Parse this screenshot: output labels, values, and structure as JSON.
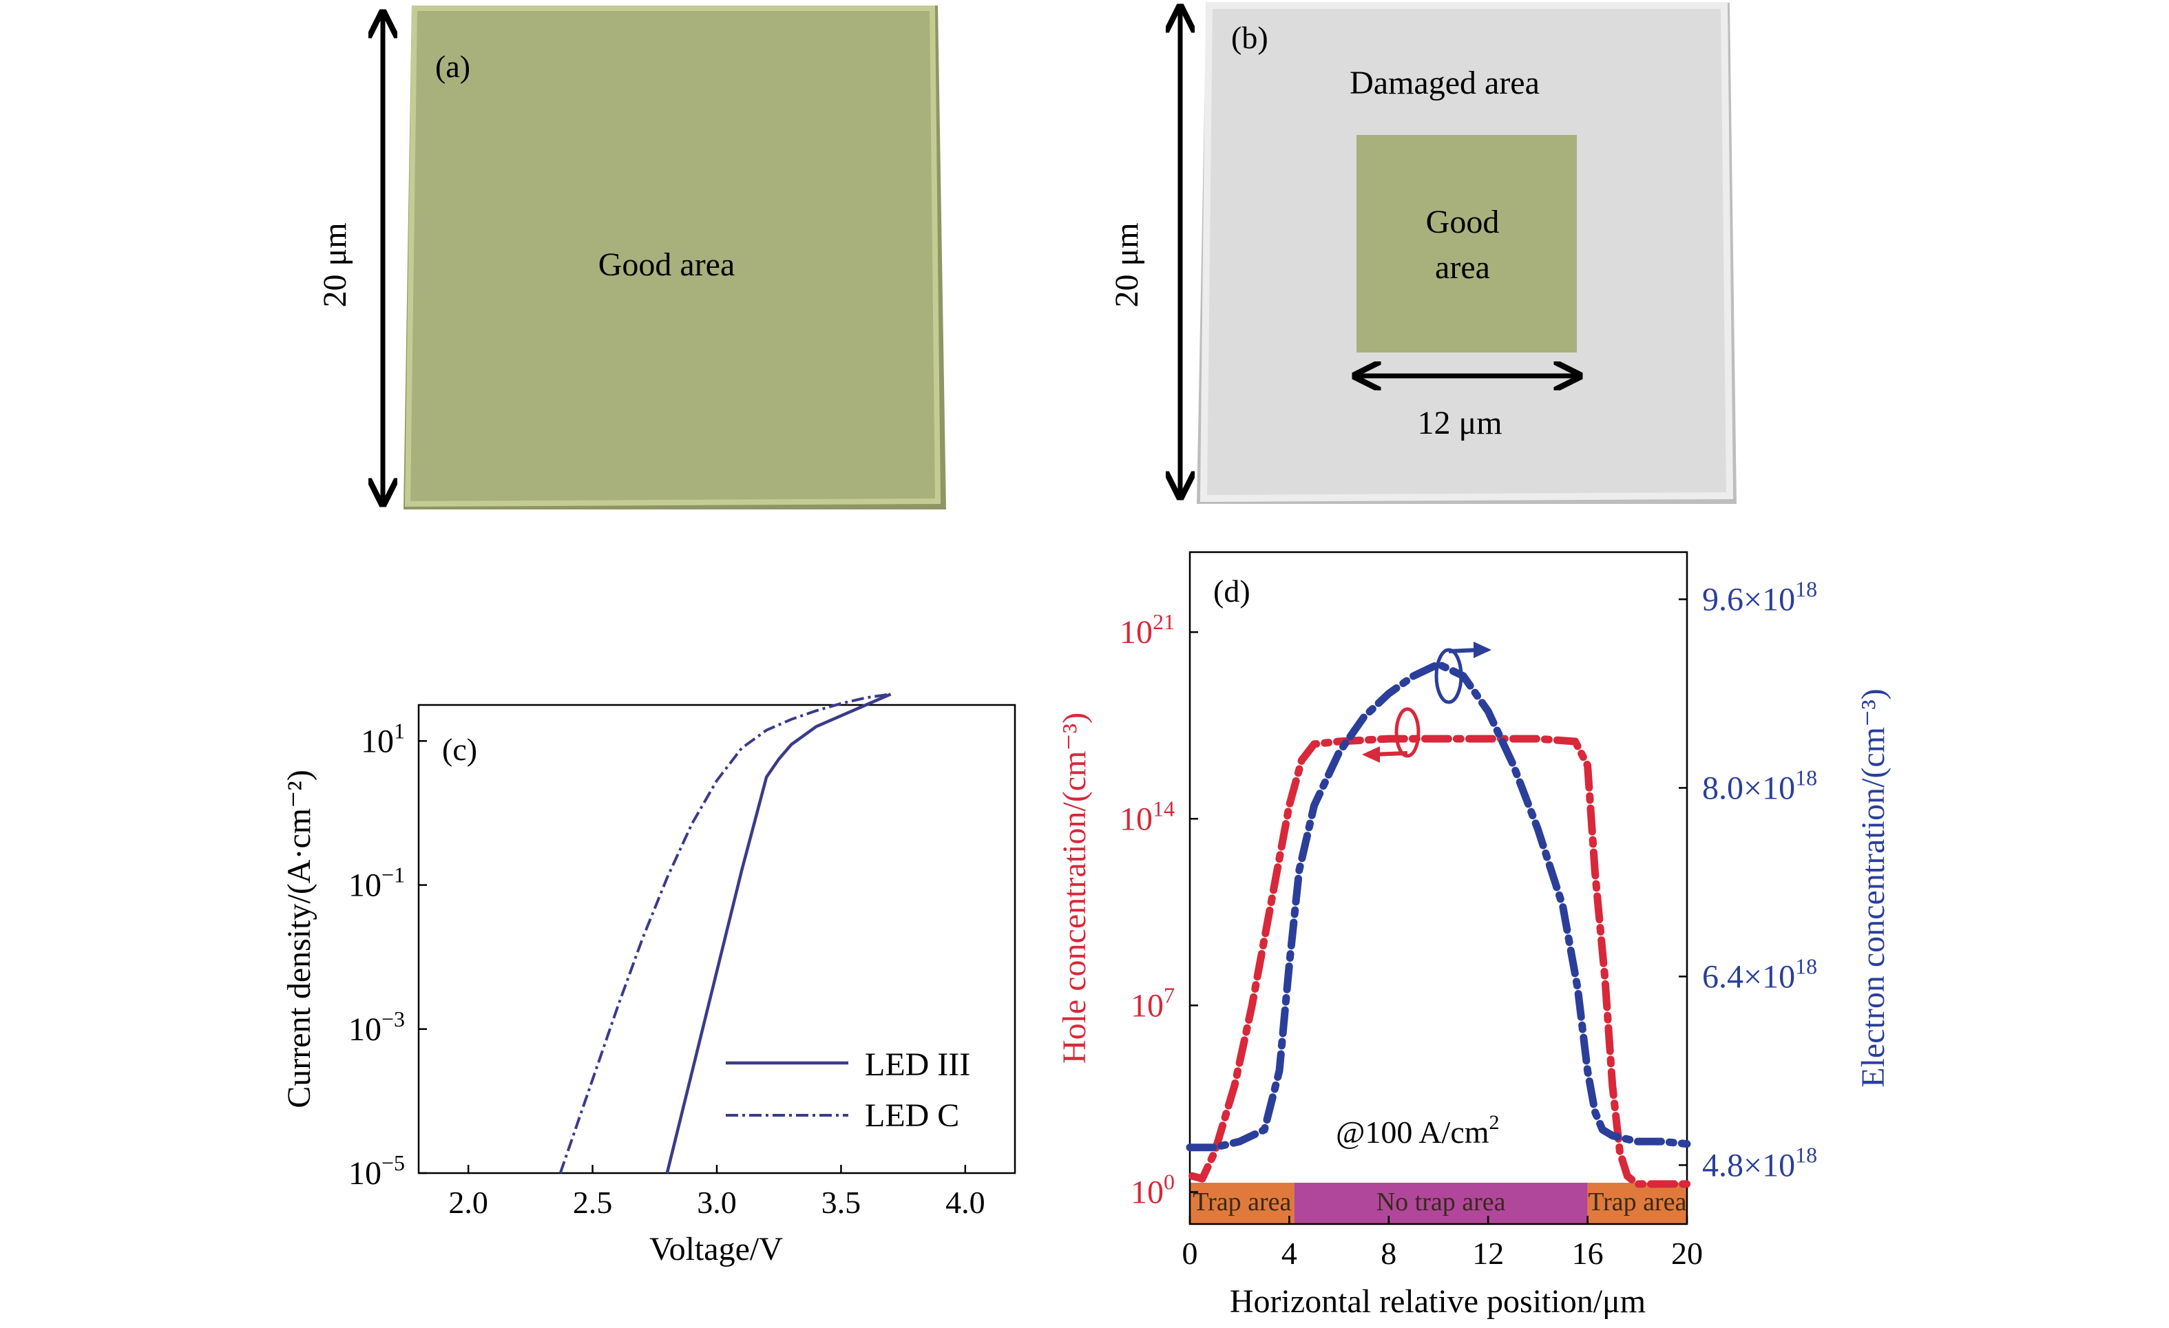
{
  "panel_a": {
    "label": "(a)",
    "area_label": "Good area",
    "dimension": "20 μm",
    "colors": {
      "good": "#a8b07c",
      "good_edge": "#c4cc94",
      "good_dark": "#8e9664"
    }
  },
  "panel_b": {
    "label": "(b)",
    "damaged_label": "Damaged area",
    "good_label_line1": "Good",
    "good_label_line2": "area",
    "width_dimension": "12 μm",
    "height_dimension": "20 μm",
    "colors": {
      "damaged": "#dcdcdc",
      "damaged_edge": "#ededed",
      "good": "#a8b07c"
    }
  },
  "chart_data": [
    {
      "panel": "(c)",
      "type": "line",
      "xlabel": "Voltage/V",
      "ylabel": "Current density/(A·cm⁻²)",
      "xlim": [
        1.8,
        4.2
      ],
      "ylim_log10": [
        -5,
        1.5
      ],
      "y_scale": "log",
      "xticks": [
        "2.0",
        "2.5",
        "3.0",
        "3.5",
        "4.0"
      ],
      "yticks": [
        {
          "base": "10",
          "exp": "1",
          "value_log10": 1
        },
        {
          "base": "10",
          "exp": "−1",
          "value_log10": -1
        },
        {
          "base": "10",
          "exp": "−3",
          "value_log10": -3
        },
        {
          "base": "10",
          "exp": "−5",
          "value_log10": -5
        }
      ],
      "legend_position": "bottom-right",
      "series": [
        {
          "name": "LED III",
          "style": "solid",
          "color": "#3b3b8a",
          "x": [
            2.8,
            2.9,
            3.0,
            3.1,
            3.2,
            3.25,
            3.3,
            3.4,
            3.5,
            3.6,
            3.7
          ],
          "y_log10": [
            -5.0,
            -3.6,
            -2.2,
            -0.8,
            0.5,
            0.75,
            0.95,
            1.2,
            1.35,
            1.5,
            1.65
          ]
        },
        {
          "name": "LED C",
          "style": "dashdot",
          "color": "#3b3b8a",
          "x": [
            2.37,
            2.5,
            2.6,
            2.7,
            2.8,
            2.9,
            3.0,
            3.1,
            3.2,
            3.3,
            3.4,
            3.5,
            3.6,
            3.7
          ],
          "y_log10": [
            -5.0,
            -3.7,
            -2.7,
            -1.75,
            -0.9,
            -0.15,
            0.45,
            0.9,
            1.15,
            1.3,
            1.42,
            1.52,
            1.6,
            1.65
          ]
        }
      ]
    },
    {
      "panel": "(d)",
      "type": "line",
      "xlabel": "Horizontal relative position/μm",
      "ylabel_left": "Hole concentration/(cm⁻³)",
      "ylabel_right": "Electron concentration/(cm⁻³)",
      "xlim": [
        0,
        20
      ],
      "xticks": [
        "0",
        "4",
        "8",
        "12",
        "16",
        "20"
      ],
      "left_y_scale": "log",
      "left_ylim_log10": [
        -1.2,
        24
      ],
      "left_yticks": [
        {
          "base": "10",
          "exp": "21",
          "value_log10": 21
        },
        {
          "base": "10",
          "exp": "14",
          "value_log10": 14
        },
        {
          "base": "10",
          "exp": "7",
          "value_log10": 7
        },
        {
          "base": "10",
          "exp": "0",
          "value_log10": 0
        }
      ],
      "right_ylim": [
        4.3,
        10.0
      ],
      "right_yticks": [
        {
          "mant": "9.6×10",
          "exp": "18",
          "value": 9.6
        },
        {
          "mant": "8.0×10",
          "exp": "18",
          "value": 8.0
        },
        {
          "mant": "6.4×10",
          "exp": "18",
          "value": 6.4
        },
        {
          "mant": "4.8×10",
          "exp": "18",
          "value": 4.8
        }
      ],
      "annotation": "@100 A/cm",
      "annotation_sup": "2",
      "regions": [
        {
          "label": "Trap area",
          "x0": 0,
          "x1": 4.2,
          "color": "#e07a3c"
        },
        {
          "label": "No trap area",
          "x0": 4.2,
          "x1": 16,
          "color": "#b0479a"
        },
        {
          "label": "Trap area",
          "x0": 16,
          "x1": 20,
          "color": "#e07a3c"
        }
      ],
      "series": [
        {
          "name": "Hole concentration",
          "axis": "left",
          "color": "#d8283a",
          "style": "dashdot",
          "x": [
            0.1,
            0.5,
            1.0,
            1.8,
            2.5,
            3.0,
            3.5,
            4.0,
            4.5,
            5.0,
            6.0,
            8.0,
            10.0,
            12.0,
            14.0,
            15.5,
            16.0,
            16.3,
            16.7,
            17.0,
            17.3,
            17.6,
            18.0,
            19.0,
            20.0
          ],
          "y_log10": [
            0.6,
            0.5,
            1.5,
            4.0,
            7.0,
            9.5,
            12.0,
            14.5,
            16.2,
            16.8,
            16.9,
            17.0,
            17.0,
            17.0,
            17.0,
            16.9,
            16.0,
            12.0,
            8.0,
            4.0,
            1.5,
            0.6,
            0.3,
            0.3,
            0.3
          ]
        },
        {
          "name": "Electron concentration",
          "axis": "right",
          "color": "#2b3f9a",
          "style": "dashdot",
          "x": [
            0.0,
            1.0,
            2.0,
            3.0,
            3.6,
            4.0,
            4.4,
            5.0,
            6.0,
            7.0,
            8.0,
            9.0,
            10.0,
            11.0,
            12.0,
            13.0,
            14.0,
            15.0,
            15.6,
            16.0,
            16.3,
            16.6,
            17.0,
            18.0,
            19.0,
            20.0
          ],
          "y": [
            4.95,
            4.95,
            5.0,
            5.1,
            5.6,
            6.5,
            7.3,
            7.85,
            8.3,
            8.6,
            8.8,
            8.95,
            9.05,
            8.95,
            8.65,
            8.2,
            7.65,
            7.0,
            6.3,
            5.6,
            5.25,
            5.1,
            5.05,
            5.0,
            5.0,
            4.98
          ]
        }
      ]
    }
  ]
}
